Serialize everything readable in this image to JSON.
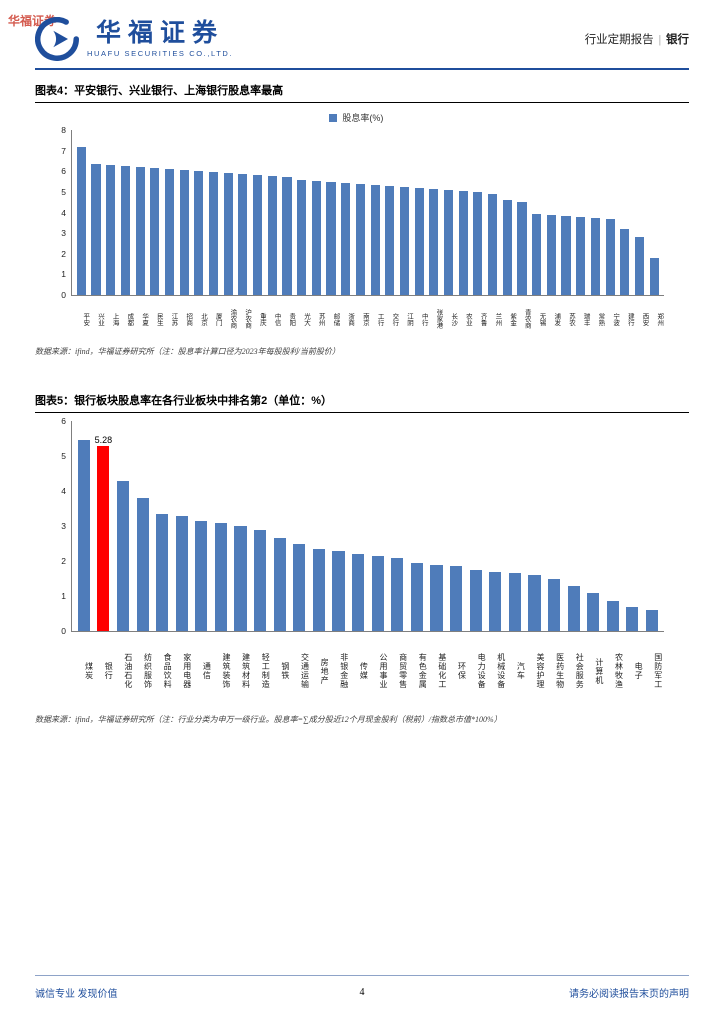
{
  "watermark": "华福证券",
  "header": {
    "brand_cn": "华福证券",
    "brand_en": "HUAFU SECURITIES CO.,LTD.",
    "report_type": "行业定期报告",
    "separator": "|",
    "industry": "银行"
  },
  "figure4": {
    "title": "图表4：平安银行、兴业银行、上海银行股息率最高",
    "source": "数据来源：ifind，华福证券研究所（注：股息率计算口径为2023年每股股利/当前股价）"
  },
  "figure5": {
    "title": "图表5：银行板块股息率在各行业板块中排名第2（单位：%）",
    "source": "数据来源：ifind，华福证券研究所（注：行业分类为申万一级行业。股息率=∑成分股近12个月现金股利（税前）/指数总市值*100%）"
  },
  "chart_data": [
    {
      "type": "bar",
      "title": "",
      "legend": [
        "股息率(%)"
      ],
      "ylim": [
        0,
        8
      ],
      "yticks": [
        0,
        1,
        2,
        3,
        4,
        5,
        6,
        7,
        8
      ],
      "grid": false,
      "legend_position": "top",
      "categories": [
        "平安",
        "兴业",
        "上海",
        "成都",
        "华夏",
        "民生",
        "江苏",
        "招商",
        "北京",
        "厦门",
        "渝农商",
        "沪农商",
        "重庆",
        "中信",
        "贵阳",
        "光大",
        "苏州",
        "邮储",
        "浙商",
        "南京",
        "工行",
        "交行",
        "江阴",
        "中行",
        "张家港",
        "长沙",
        "农业",
        "齐鲁",
        "兰州",
        "紫金",
        "青农商",
        "无锡",
        "浦发",
        "苏农",
        "瑞丰",
        "常熟",
        "宁波",
        "建行",
        "西安",
        "郑州"
      ],
      "values": [
        7.2,
        6.35,
        6.3,
        6.25,
        6.2,
        6.15,
        6.1,
        6.05,
        6.0,
        5.95,
        5.9,
        5.85,
        5.8,
        5.75,
        5.7,
        5.6,
        5.55,
        5.5,
        5.45,
        5.4,
        5.35,
        5.3,
        5.25,
        5.2,
        5.15,
        5.1,
        5.05,
        5.0,
        4.9,
        4.6,
        4.5,
        3.95,
        3.9,
        3.85,
        3.8,
        3.75,
        3.7,
        3.2,
        2.8,
        1.8
      ]
    },
    {
      "type": "bar",
      "title": "",
      "legend": [],
      "ylim": [
        0,
        6
      ],
      "yticks": [
        0,
        1,
        2,
        3,
        4,
        5,
        6
      ],
      "grid": false,
      "highlight_index": 1,
      "highlight_label": "5.28",
      "categories": [
        "煤炭",
        "银行",
        "石油石化",
        "纺织服饰",
        "食品饮料",
        "家用电器",
        "通信",
        "建筑装饰",
        "建筑材料",
        "轻工制造",
        "钢铁",
        "交通运输",
        "房地产",
        "非银金融",
        "传媒",
        "公用事业",
        "商贸零售",
        "有色金属",
        "基础化工",
        "环保",
        "电力设备",
        "机械设备",
        "汽车",
        "美容护理",
        "医药生物",
        "社会服务",
        "计算机",
        "农林牧渔",
        "电子",
        "国防军工"
      ],
      "values": [
        5.45,
        5.28,
        4.3,
        3.8,
        3.35,
        3.3,
        3.15,
        3.1,
        3.0,
        2.9,
        2.65,
        2.5,
        2.35,
        2.3,
        2.2,
        2.15,
        2.1,
        1.95,
        1.9,
        1.85,
        1.75,
        1.7,
        1.65,
        1.6,
        1.5,
        1.3,
        1.1,
        0.85,
        0.7,
        0.6
      ]
    }
  ],
  "footer": {
    "left": "诚信专业  发现价值",
    "page": "4",
    "right": "请务必阅读报告末页的声明"
  },
  "colors": {
    "bar": "#4f7cba",
    "highlight": "#ff0000",
    "brand": "#1f4e9c",
    "watermark": "#d04a3c"
  }
}
